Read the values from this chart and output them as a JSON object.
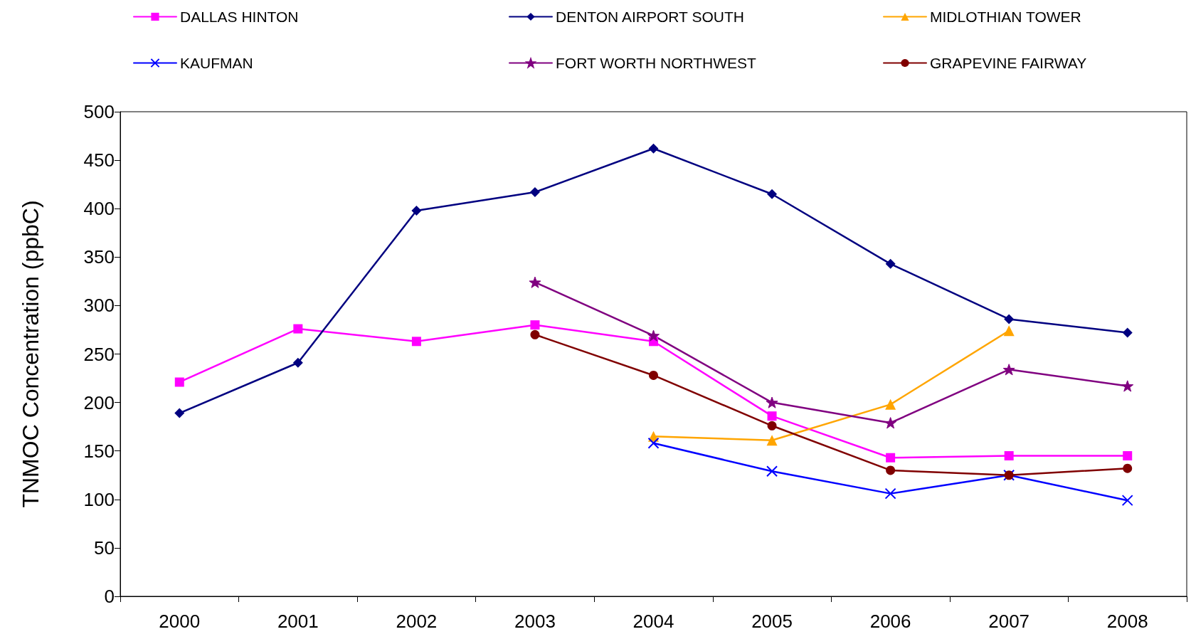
{
  "chart_data": {
    "type": "line",
    "ylabel": "TNMOC Concentration (ppbC)",
    "categories": [
      "2000",
      "2001",
      "2002",
      "2003",
      "2004",
      "2005",
      "2006",
      "2007",
      "2008"
    ],
    "ylim": [
      0,
      500
    ],
    "yticks": [
      0,
      50,
      100,
      150,
      200,
      250,
      300,
      350,
      400,
      450,
      500
    ],
    "grid": false,
    "legend": "top",
    "line_style": "solid",
    "series": [
      {
        "name": "DALLAS HINTON",
        "color": "#ff00ff",
        "marker": "square",
        "values": [
          221,
          276,
          263,
          280,
          263,
          186,
          143,
          145,
          145
        ]
      },
      {
        "name": "DENTON AIRPORT SOUTH",
        "color": "#000080",
        "marker": "diamond",
        "values": [
          189,
          241,
          398,
          417,
          462,
          415,
          343,
          286,
          272
        ]
      },
      {
        "name": "MIDLOTHIAN TOWER",
        "color": "#ffa500",
        "marker": "triangle",
        "values": [
          null,
          null,
          null,
          null,
          165,
          161,
          198,
          274,
          null
        ]
      },
      {
        "name": "KAUFMAN",
        "color": "#0000ff",
        "marker": "cross",
        "values": [
          null,
          null,
          null,
          null,
          158,
          129,
          106,
          125,
          99
        ]
      },
      {
        "name": "FORT WORTH NORTHWEST",
        "color": "#800080",
        "marker": "star",
        "values": [
          null,
          null,
          null,
          324,
          269,
          200,
          179,
          234,
          217
        ]
      },
      {
        "name": "GRAPEVINE FAIRWAY",
        "color": "#800000",
        "marker": "circle",
        "values": [
          null,
          null,
          null,
          270,
          228,
          176,
          130,
          125,
          132
        ]
      }
    ]
  }
}
